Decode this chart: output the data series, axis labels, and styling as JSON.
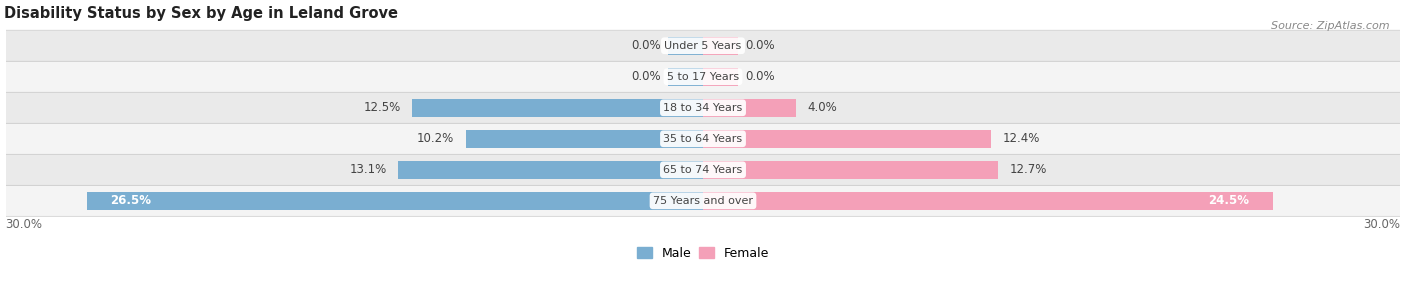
{
  "title": "Disability Status by Sex by Age in Leland Grove",
  "source": "Source: ZipAtlas.com",
  "categories": [
    "Under 5 Years",
    "5 to 17 Years",
    "18 to 34 Years",
    "35 to 64 Years",
    "65 to 74 Years",
    "75 Years and over"
  ],
  "male_values": [
    0.0,
    0.0,
    12.5,
    10.2,
    13.1,
    26.5
  ],
  "female_values": [
    0.0,
    0.0,
    4.0,
    12.4,
    12.7,
    24.5
  ],
  "male_color": "#7aaed1",
  "female_color": "#f4a0b8",
  "male_color_dark": "#5b9fc4",
  "female_color_dark": "#e87fa0",
  "row_bg_light": "#f4f4f4",
  "row_bg_dark": "#eaeaea",
  "max_val": 30.0,
  "bar_height": 0.58,
  "title_fontsize": 10.5,
  "source_fontsize": 8,
  "tick_fontsize": 8.5,
  "label_fontsize": 8.5,
  "category_fontsize": 8,
  "small_bar_width": 1.5
}
